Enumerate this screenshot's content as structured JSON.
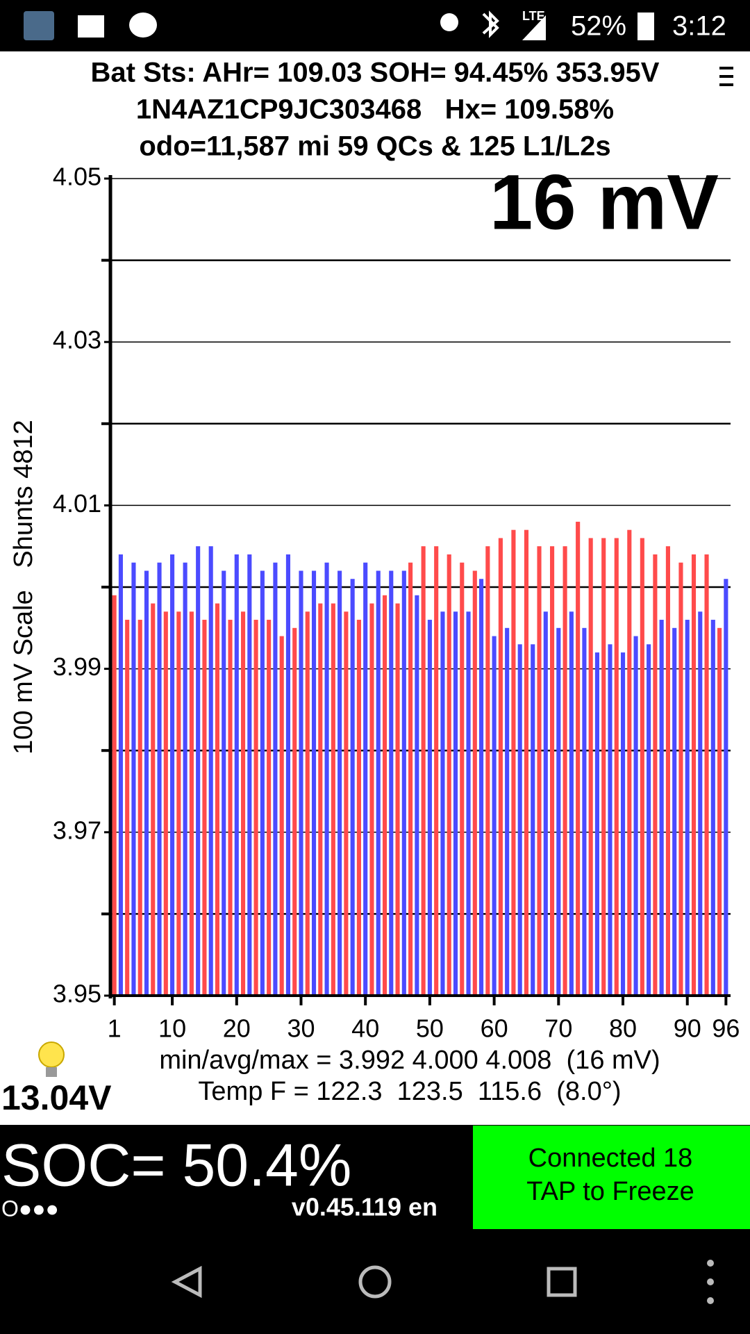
{
  "status_bar": {
    "network": "LTE",
    "battery": "52%",
    "time": "3:12"
  },
  "header": {
    "lines": [
      "Bat Sts: AHr= 109.03 SOH= 94.45% 353.95V",
      "1N4AZ1CP9JC303468   Hx= 109.58%",
      "odo=11,587 mi 59 QCs & 125 L1/L2s"
    ]
  },
  "chart_data": {
    "type": "bar",
    "title": "16 mV",
    "y_label": "100 mV Scale   Shunts 4812",
    "x": [
      1,
      2,
      3,
      4,
      5,
      6,
      7,
      8,
      9,
      10,
      11,
      12,
      13,
      14,
      15,
      16,
      17,
      18,
      19,
      20,
      21,
      22,
      23,
      24,
      25,
      26,
      27,
      28,
      29,
      30,
      31,
      32,
      33,
      34,
      35,
      36,
      37,
      38,
      39,
      40,
      41,
      42,
      43,
      44,
      45,
      46,
      47,
      48,
      49,
      50,
      51,
      52,
      53,
      54,
      55,
      56,
      57,
      58,
      59,
      60,
      61,
      62,
      63,
      64,
      65,
      66,
      67,
      68,
      69,
      70,
      71,
      72,
      73,
      74,
      75,
      76,
      77,
      78,
      79,
      80,
      81,
      82,
      83,
      84,
      85,
      86,
      87,
      88,
      89,
      90,
      91,
      92,
      93,
      94,
      95,
      96
    ],
    "values": [
      3.999,
      4.004,
      3.996,
      4.003,
      3.996,
      4.002,
      3.998,
      4.003,
      3.997,
      4.004,
      3.997,
      4.003,
      3.997,
      4.005,
      3.996,
      4.005,
      3.998,
      4.002,
      3.996,
      4.004,
      3.997,
      4.004,
      3.996,
      4.002,
      3.996,
      4.003,
      3.994,
      4.004,
      3.995,
      4.002,
      3.997,
      4.002,
      3.998,
      4.003,
      3.998,
      4.002,
      3.997,
      4.001,
      3.996,
      4.003,
      3.998,
      4.002,
      3.999,
      4.002,
      3.998,
      4.002,
      4.003,
      3.999,
      4.005,
      3.996,
      4.005,
      3.997,
      4.004,
      3.997,
      4.003,
      3.997,
      4.002,
      4.001,
      4.005,
      3.994,
      4.006,
      3.995,
      4.007,
      3.993,
      4.007,
      3.993,
      4.005,
      3.997,
      4.005,
      3.995,
      4.005,
      3.997,
      4.008,
      3.995,
      4.006,
      3.992,
      4.006,
      3.993,
      4.006,
      3.992,
      4.007,
      3.994,
      4.006,
      3.993,
      4.004,
      3.996,
      4.005,
      3.995,
      4.003,
      3.996,
      4.004,
      3.997,
      4.004,
      3.996,
      3.995,
      4.001
    ],
    "bar_colors": [
      "#ff4b4b",
      "#4b4bff"
    ],
    "xlim": [
      0.5,
      96.5
    ],
    "xticks": [
      1,
      10,
      20,
      30,
      40,
      50,
      60,
      70,
      80,
      90,
      96
    ],
    "ylim": [
      3.95,
      4.05
    ],
    "yticks": [
      3.95,
      3.97,
      3.99,
      4.01,
      4.03,
      4.05
    ],
    "minor_yticks": [
      3.96,
      3.98,
      4,
      4.02,
      4.04
    ],
    "grid": true
  },
  "footer": {
    "stats": "min/avg/max = 3.992 4.000 4.008  (16 mV)",
    "temp": "Temp F = 122.3  123.5  115.6  (8.0°)",
    "aux_voltage": "13.04V"
  },
  "bottom": {
    "soc": "SOC= 50.4%",
    "dots": "O●●●",
    "version": "v0.45.119 en",
    "button": [
      "Connected 18",
      "TAP to Freeze"
    ]
  }
}
